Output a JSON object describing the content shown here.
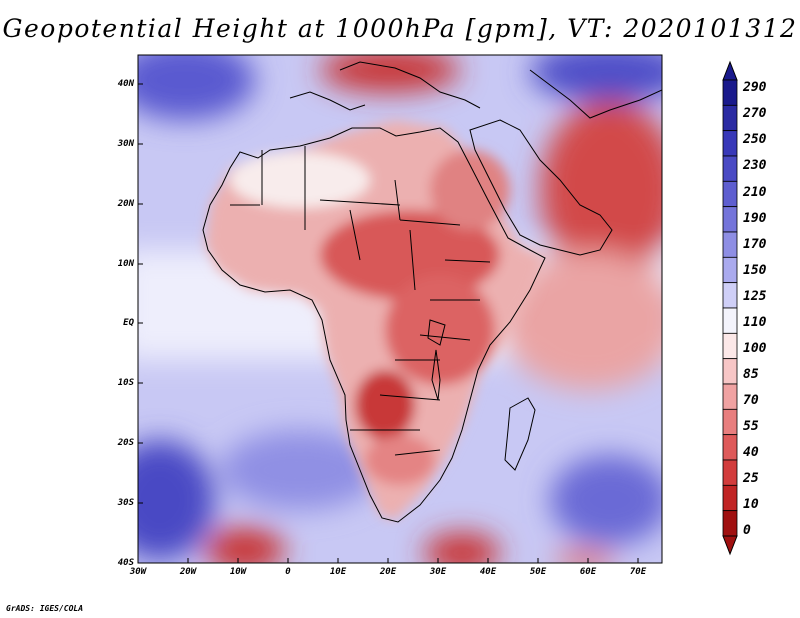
{
  "title": "Geopotential Height at 1000hPa [gpm], VT: 2020101312",
  "credit": "GrADS: IGES/COLA",
  "map": {
    "region": "Africa",
    "lat_range": [
      -40,
      45
    ],
    "lon_range": [
      -30,
      75
    ],
    "lat_labels": [
      "40N",
      "30N",
      "20N",
      "10N",
      "EQ",
      "10S",
      "20S",
      "30S",
      "40S"
    ],
    "lon_labels": [
      "30W",
      "20W",
      "10W",
      "0",
      "10E",
      "20E",
      "30E",
      "40E",
      "50E",
      "60E",
      "70E"
    ]
  },
  "colorbar": {
    "levels": [
      "290",
      "270",
      "250",
      "230",
      "210",
      "190",
      "170",
      "150",
      "125",
      "110",
      "100",
      "85",
      "70",
      "55",
      "40",
      "25",
      "10",
      "0"
    ],
    "colors": [
      "#1a1a8c",
      "#2b2ba3",
      "#3838b8",
      "#4a4ac4",
      "#5e5ed0",
      "#7474da",
      "#8e8ee4",
      "#aaaaee",
      "#cfcff7",
      "#f4f4fc",
      "#fce8e8",
      "#f7c6c6",
      "#f0a2a2",
      "#e87e7e",
      "#de5a5a",
      "#d23c3c",
      "#c02424",
      "#a01010"
    ]
  }
}
